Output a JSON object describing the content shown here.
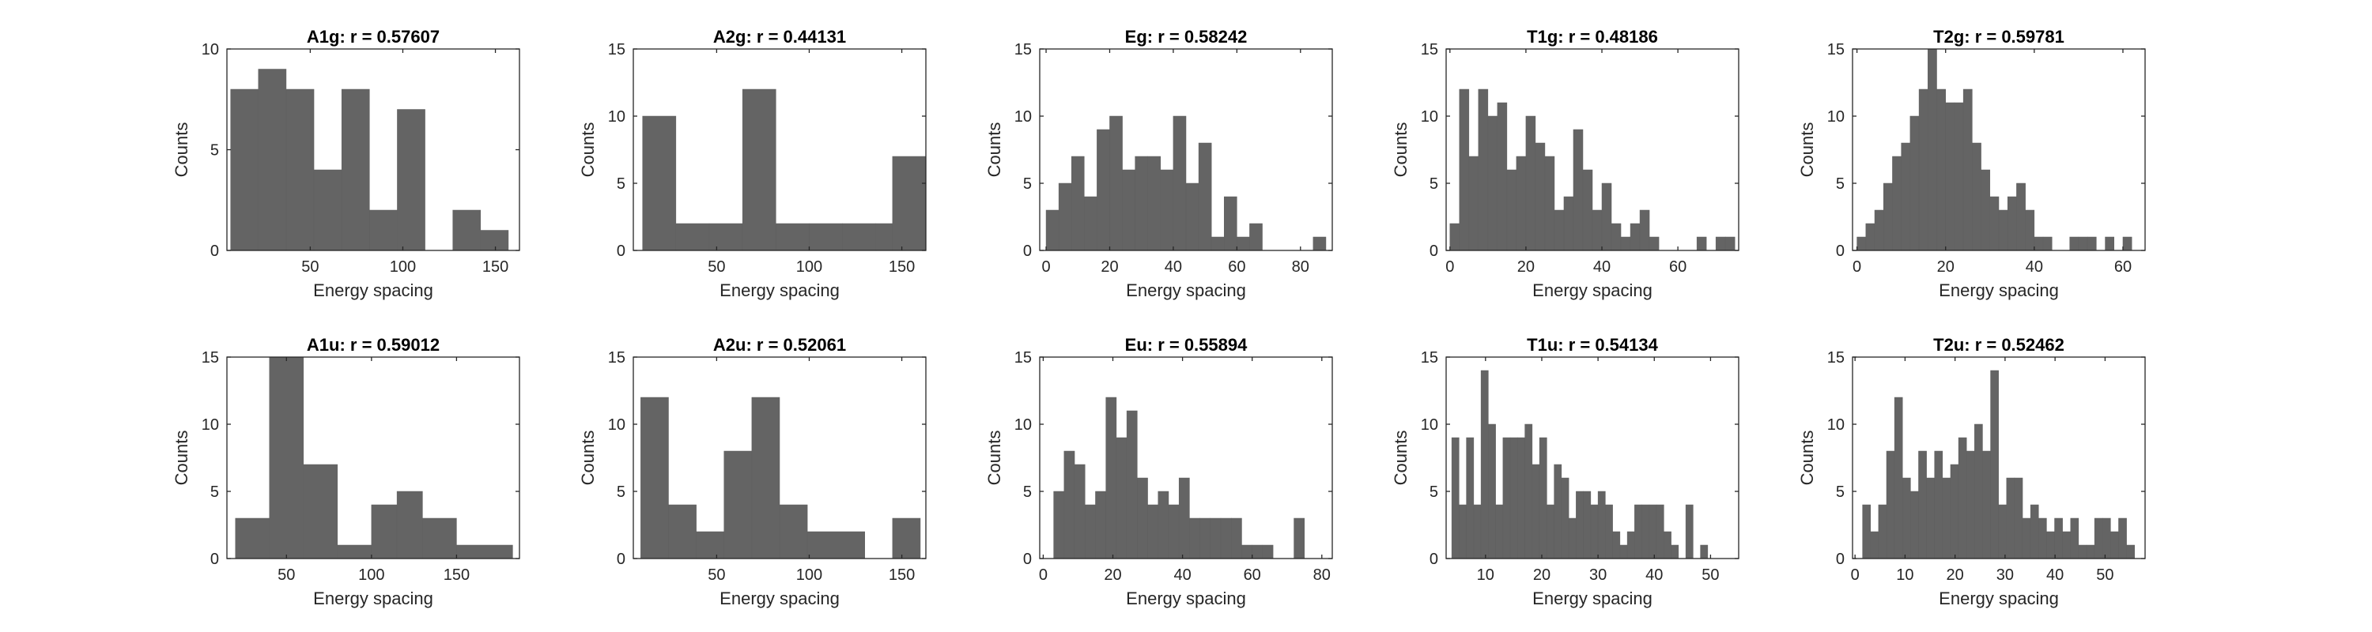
{
  "style": {
    "bar_color": "#646464",
    "axis_color": "#262626",
    "background": "#ffffff"
  },
  "chart_data": [
    {
      "type": "histogram",
      "title": "A1g: r = 0.57607",
      "xlabel": "Energy spacing",
      "ylabel": "Counts",
      "xlim": [
        5,
        163
      ],
      "ylim": [
        0,
        10
      ],
      "xticks": [
        50,
        100,
        150
      ],
      "yticks": [
        0,
        5,
        10
      ],
      "bins": [
        {
          "x0": 7,
          "x1": 22,
          "y": 8
        },
        {
          "x0": 22,
          "x1": 37,
          "y": 9
        },
        {
          "x0": 37,
          "x1": 52,
          "y": 8
        },
        {
          "x0": 52,
          "x1": 67,
          "y": 4
        },
        {
          "x0": 67,
          "x1": 82,
          "y": 8
        },
        {
          "x0": 82,
          "x1": 97,
          "y": 2
        },
        {
          "x0": 97,
          "x1": 112,
          "y": 7
        },
        {
          "x0": 112,
          "x1": 127,
          "y": 0
        },
        {
          "x0": 127,
          "x1": 142,
          "y": 2
        },
        {
          "x0": 142,
          "x1": 157,
          "y": 1
        }
      ]
    },
    {
      "type": "histogram",
      "title": "A2g: r = 0.44131",
      "xlabel": "Energy spacing",
      "ylabel": "Counts",
      "xlim": [
        5,
        163
      ],
      "ylim": [
        0,
        15
      ],
      "xticks": [
        50,
        100,
        150
      ],
      "yticks": [
        0,
        5,
        10,
        15
      ],
      "bins": [
        {
          "x0": 10,
          "x1": 28,
          "y": 10
        },
        {
          "x0": 28,
          "x1": 46,
          "y": 2
        },
        {
          "x0": 46,
          "x1": 64,
          "y": 2
        },
        {
          "x0": 64,
          "x1": 82,
          "y": 12
        },
        {
          "x0": 82,
          "x1": 100,
          "y": 2
        },
        {
          "x0": 100,
          "x1": 118,
          "y": 2
        },
        {
          "x0": 118,
          "x1": 136,
          "y": 2
        },
        {
          "x0": 136,
          "x1": 145,
          "y": 2
        },
        {
          "x0": 145,
          "x1": 163,
          "y": 7
        }
      ]
    },
    {
      "type": "histogram",
      "title": "Eg: r = 0.58242",
      "xlabel": "Energy spacing",
      "ylabel": "Counts",
      "xlim": [
        -2,
        90
      ],
      "ylim": [
        0,
        15
      ],
      "xticks": [
        0,
        20,
        40,
        60,
        80
      ],
      "yticks": [
        0,
        5,
        10,
        15
      ],
      "binstart": 0,
      "binwidth": 4,
      "counts": [
        3,
        5,
        7,
        4,
        9,
        10,
        6,
        7,
        7,
        6,
        10,
        5,
        8,
        1,
        4,
        1,
        2,
        0,
        0,
        0,
        0,
        1
      ]
    },
    {
      "type": "histogram",
      "title": "T1g: r = 0.48186",
      "xlabel": "Energy spacing",
      "ylabel": "Counts",
      "xlim": [
        -1,
        76
      ],
      "ylim": [
        0,
        15
      ],
      "xticks": [
        0,
        20,
        40,
        60
      ],
      "yticks": [
        0,
        5,
        10,
        15
      ],
      "binstart": 0,
      "binwidth": 2.5,
      "counts": [
        2,
        12,
        7,
        12,
        10,
        11,
        6,
        7,
        10,
        8,
        7,
        3,
        4,
        9,
        6,
        3,
        5,
        2,
        1,
        2,
        3,
        1,
        0,
        0,
        0,
        0,
        1,
        0,
        1,
        1
      ]
    },
    {
      "type": "histogram",
      "title": "T2g: r = 0.59781",
      "xlabel": "Energy spacing",
      "ylabel": "Counts",
      "xlim": [
        -1,
        65
      ],
      "ylim": [
        0,
        15
      ],
      "xticks": [
        0,
        20,
        40,
        60
      ],
      "yticks": [
        0,
        5,
        10,
        15
      ],
      "binstart": 0,
      "binwidth": 2,
      "counts": [
        1,
        2,
        3,
        5,
        7,
        8,
        10,
        12,
        15,
        12,
        11,
        11,
        12,
        8,
        6,
        4,
        3,
        4,
        5,
        3,
        1,
        1,
        0,
        0,
        1,
        1,
        1,
        0,
        1,
        0,
        1
      ]
    },
    {
      "type": "histogram",
      "title": "A1u: r = 0.59012",
      "xlabel": "Energy spacing",
      "ylabel": "Counts",
      "xlim": [
        15,
        187
      ],
      "ylim": [
        0,
        15
      ],
      "xticks": [
        50,
        100,
        150
      ],
      "yticks": [
        0,
        5,
        10,
        15
      ],
      "bins": [
        {
          "x0": 20,
          "x1": 40,
          "y": 3
        },
        {
          "x0": 40,
          "x1": 60,
          "y": 15
        },
        {
          "x0": 60,
          "x1": 80,
          "y": 7
        },
        {
          "x0": 80,
          "x1": 100,
          "y": 1
        },
        {
          "x0": 100,
          "x1": 115,
          "y": 4
        },
        {
          "x0": 115,
          "x1": 130,
          "y": 5
        },
        {
          "x0": 130,
          "x1": 150,
          "y": 3
        },
        {
          "x0": 150,
          "x1": 183,
          "y": 1
        }
      ]
    },
    {
      "type": "histogram",
      "title": "A2u: r = 0.52061",
      "xlabel": "Energy spacing",
      "ylabel": "Counts",
      "xlim": [
        5,
        163
      ],
      "ylim": [
        0,
        15
      ],
      "xticks": [
        50,
        100,
        150
      ],
      "yticks": [
        0,
        5,
        10,
        15
      ],
      "bins": [
        {
          "x0": 9,
          "x1": 24,
          "y": 12
        },
        {
          "x0": 24,
          "x1": 39,
          "y": 4
        },
        {
          "x0": 39,
          "x1": 54,
          "y": 2
        },
        {
          "x0": 54,
          "x1": 69,
          "y": 8
        },
        {
          "x0": 69,
          "x1": 84,
          "y": 12
        },
        {
          "x0": 84,
          "x1": 99,
          "y": 4
        },
        {
          "x0": 99,
          "x1": 130,
          "y": 2
        },
        {
          "x0": 145,
          "x1": 160,
          "y": 3
        }
      ]
    },
    {
      "type": "histogram",
      "title": "Eu: r = 0.55894",
      "xlabel": "Energy spacing",
      "ylabel": "Counts",
      "xlim": [
        -1,
        83
      ],
      "ylim": [
        0,
        15
      ],
      "xticks": [
        0,
        20,
        40,
        60,
        80
      ],
      "yticks": [
        0,
        5,
        10,
        15
      ],
      "binstart": 3,
      "binwidth": 3,
      "counts": [
        5,
        8,
        7,
        4,
        5,
        12,
        9,
        11,
        6,
        4,
        5,
        4,
        6,
        3,
        3,
        3,
        3,
        3,
        1,
        1,
        1,
        0,
        0,
        3
      ]
    },
    {
      "type": "histogram",
      "title": "T1u: r = 0.54134",
      "xlabel": "Energy spacing",
      "ylabel": "Counts",
      "xlim": [
        3,
        55
      ],
      "ylim": [
        0,
        15
      ],
      "xticks": [
        10,
        20,
        30,
        40,
        50
      ],
      "yticks": [
        0,
        5,
        10,
        15
      ],
      "binstart": 4,
      "binwidth": 1.3,
      "counts": [
        9,
        4,
        9,
        4,
        14,
        10,
        4,
        9,
        9,
        9,
        10,
        7,
        9,
        4,
        7,
        6,
        3,
        5,
        5,
        4,
        5,
        4,
        2,
        1,
        2,
        4,
        4,
        4,
        4,
        2,
        1,
        0,
        4,
        0,
        1
      ]
    },
    {
      "type": "histogram",
      "title": "T2u: r = 0.52462",
      "xlabel": "Energy spacing",
      "ylabel": "Counts",
      "xlim": [
        -0.5,
        58
      ],
      "ylim": [
        0,
        15
      ],
      "xticks": [
        0,
        10,
        20,
        30,
        40,
        50
      ],
      "yticks": [
        0,
        5,
        10,
        15
      ],
      "binstart": 1.5,
      "binwidth": 1.6,
      "counts": [
        4,
        2,
        4,
        8,
        12,
        6,
        5,
        8,
        6,
        8,
        6,
        7,
        9,
        8,
        10,
        8,
        14,
        4,
        6,
        6,
        3,
        4,
        3,
        2,
        3,
        2,
        3,
        1,
        1,
        3,
        3,
        2,
        3,
        1
      ]
    }
  ]
}
